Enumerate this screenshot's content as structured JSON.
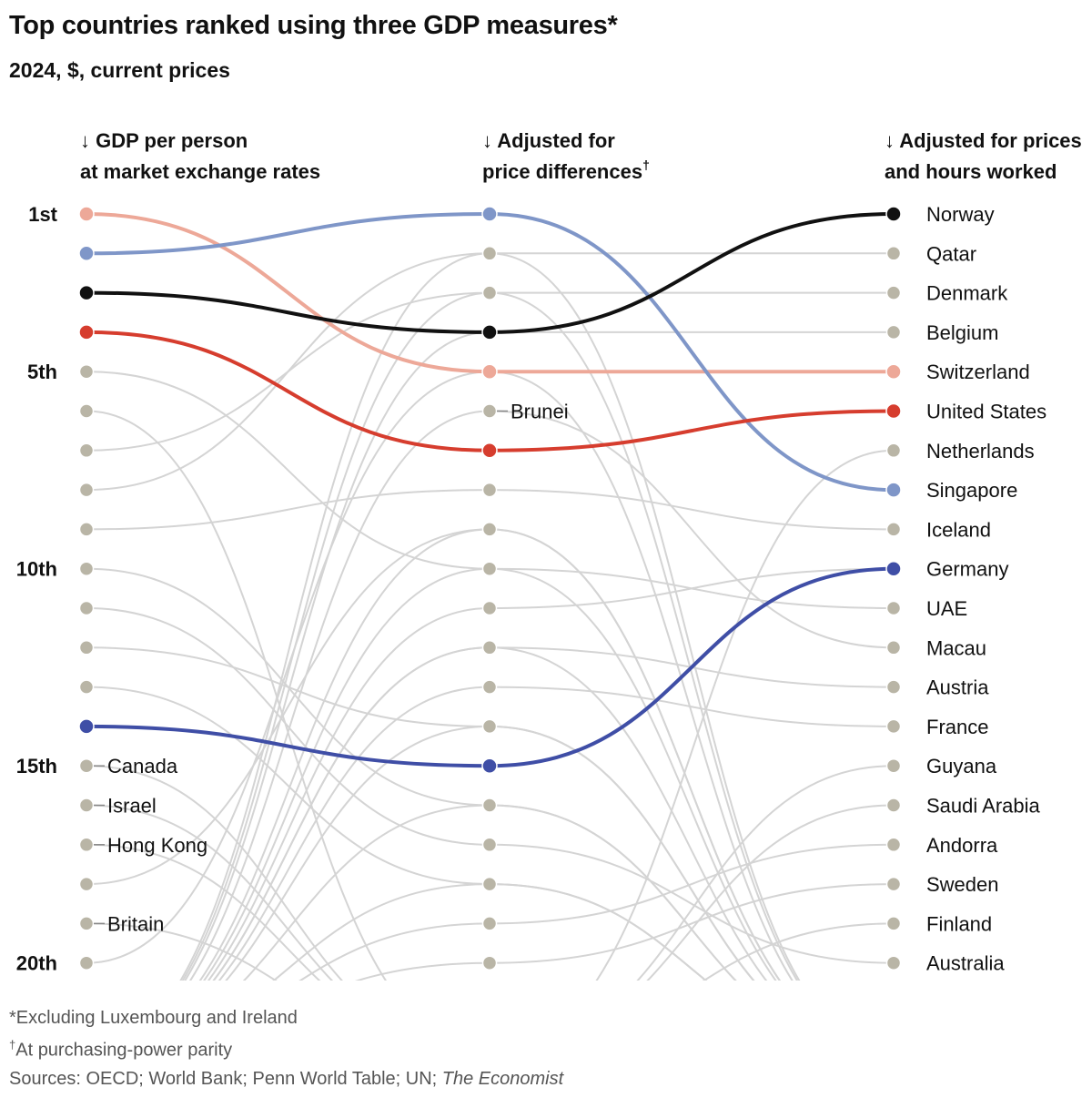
{
  "chart_data": {
    "type": "slope",
    "title": "Top countries ranked using three GDP measures*",
    "subtitle": "2024, $, current prices",
    "columns": [
      {
        "arrow": "↓",
        "line1": "GDP per person",
        "line2": "at market exchange rates",
        "mark": ""
      },
      {
        "arrow": "↓",
        "line1": "Adjusted for",
        "line2": "price differences",
        "mark": "†"
      },
      {
        "arrow": "↓",
        "line1": "Adjusted for prices",
        "line2": "and hours worked",
        "mark": ""
      }
    ],
    "rank_labels": [
      {
        "rank": 1,
        "label": "1st"
      },
      {
        "rank": 5,
        "label": "5th"
      },
      {
        "rank": 10,
        "label": "10th"
      },
      {
        "rank": 15,
        "label": "15th"
      },
      {
        "rank": 20,
        "label": "20th"
      }
    ],
    "final_ranking": [
      "Norway",
      "Qatar",
      "Denmark",
      "Belgium",
      "Switzerland",
      "United States",
      "Netherlands",
      "Singapore",
      "Iceland",
      "Germany",
      "UAE",
      "Macau",
      "Austria",
      "France",
      "Guyana",
      "Saudi Arabia",
      "Andorra",
      "Sweden",
      "Finland",
      "Australia"
    ],
    "left_labels": [
      {
        "rank": 15,
        "label": "Canada"
      },
      {
        "rank": 16,
        "label": "Israel"
      },
      {
        "rank": 17,
        "label": "Hong Kong"
      },
      {
        "rank": 19,
        "label": "Britain"
      }
    ],
    "middle_labels": [
      {
        "rank": 6,
        "label": "Brunei"
      }
    ],
    "highlighted": [
      {
        "country": "Switzerland",
        "color": "#eda898",
        "ranks": [
          1,
          5,
          5
        ]
      },
      {
        "country": "Singapore",
        "color": "#7f96c8",
        "ranks": [
          2,
          1,
          8
        ]
      },
      {
        "country": "Norway",
        "color": "#111111",
        "ranks": [
          3,
          4,
          1
        ]
      },
      {
        "country": "United States",
        "color": "#d63d2e",
        "ranks": [
          4,
          7,
          6
        ]
      },
      {
        "country": "Germany",
        "color": "#3f4ea6",
        "ranks": [
          14,
          15,
          10
        ]
      }
    ],
    "background_lines": [
      {
        "ranks": [
          null,
          2,
          2
        ]
      },
      {
        "ranks": [
          7,
          3,
          3
        ]
      },
      {
        "ranks": [
          8,
          2,
          null
        ]
      },
      {
        "ranks": [
          null,
          3,
          null
        ]
      },
      {
        "ranks": [
          null,
          4,
          4
        ]
      },
      {
        "ranks": [
          null,
          6,
          12
        ]
      },
      {
        "ranks": [
          6,
          null,
          null
        ]
      },
      {
        "ranks": [
          null,
          null,
          7
        ]
      },
      {
        "ranks": [
          9,
          8,
          9
        ]
      },
      {
        "ranks": [
          5,
          10,
          11
        ]
      },
      {
        "ranks": [
          null,
          9,
          null
        ]
      },
      {
        "ranks": [
          null,
          11,
          10
        ]
      },
      {
        "ranks": [
          null,
          12,
          13
        ]
      },
      {
        "ranks": [
          null,
          13,
          14
        ]
      },
      {
        "ranks": [
          10,
          16,
          null
        ]
      },
      {
        "ranks": [
          11,
          17,
          20
        ]
      },
      {
        "ranks": [
          12,
          14,
          null
        ]
      },
      {
        "ranks": [
          13,
          18,
          null
        ]
      },
      {
        "ranks": [
          null,
          19,
          17
        ]
      },
      {
        "ranks": [
          null,
          20,
          18
        ]
      },
      {
        "ranks": [
          null,
          null,
          15
        ]
      },
      {
        "ranks": [
          null,
          null,
          16
        ]
      },
      {
        "ranks": [
          null,
          null,
          19
        ]
      },
      {
        "ranks": [
          18,
          9,
          null
        ]
      },
      {
        "ranks": [
          20,
          5,
          null
        ]
      },
      {
        "ranks": [
          null,
          12,
          null
        ]
      },
      {
        "ranks": [
          null,
          14,
          null
        ]
      },
      {
        "ranks": [
          null,
          18,
          null
        ]
      },
      {
        "ranks": [
          15,
          null,
          null
        ]
      },
      {
        "ranks": [
          16,
          null,
          null
        ]
      },
      {
        "ranks": [
          17,
          null,
          null
        ]
      },
      {
        "ranks": [
          19,
          null,
          null
        ]
      },
      {
        "ranks": [
          null,
          10,
          null
        ]
      },
      {
        "ranks": [
          null,
          16,
          null
        ]
      }
    ]
  },
  "footnotes": {
    "note1": "*Excluding Luxembourg and Ireland",
    "note2_mark": "†",
    "note2": "At purchasing-power parity",
    "sources_prefix": "Sources: OECD; World Bank; Penn World Table; UN; ",
    "sources_em": "The Economist"
  },
  "colors": {
    "grey_line": "#d4d4d4",
    "grey_dot": "#b9b5a6"
  }
}
